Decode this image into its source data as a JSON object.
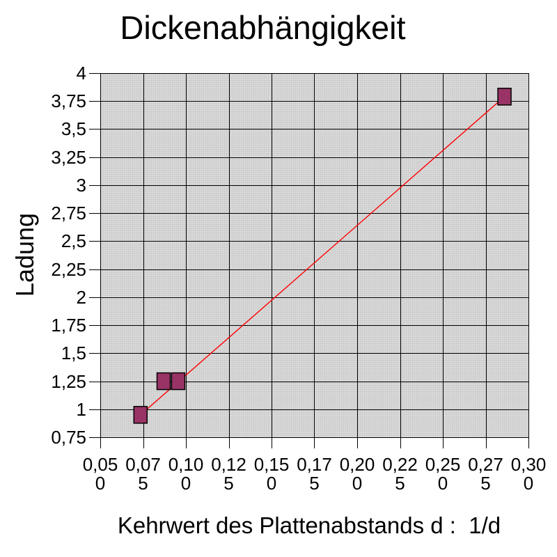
{
  "chart_data": {
    "type": "scatter",
    "title": "Dickenabhängigkeit",
    "xlabel": "Kehrwert des Plattenabstands d :  1/d",
    "ylabel": "Ladung",
    "xlim": [
      0.05,
      0.3
    ],
    "ylim": [
      0.75,
      4.0
    ],
    "grid": true,
    "legend": "none",
    "x_ticks": [
      {
        "value": 0.05,
        "label": "0,050"
      },
      {
        "value": 0.075,
        "label": "0,075"
      },
      {
        "value": 0.1,
        "label": "0,100"
      },
      {
        "value": 0.125,
        "label": "0,125"
      },
      {
        "value": 0.15,
        "label": "0,150"
      },
      {
        "value": 0.175,
        "label": "0,175"
      },
      {
        "value": 0.2,
        "label": "0,200"
      },
      {
        "value": 0.225,
        "label": "0,225"
      },
      {
        "value": 0.25,
        "label": "0,250"
      },
      {
        "value": 0.275,
        "label": "0,275"
      },
      {
        "value": 0.3,
        "label": "0,300"
      }
    ],
    "y_ticks": [
      {
        "value": 4.0,
        "label": "4"
      },
      {
        "value": 3.75,
        "label": "3,75"
      },
      {
        "value": 3.5,
        "label": "3,5"
      },
      {
        "value": 3.25,
        "label": "3,25"
      },
      {
        "value": 3.0,
        "label": "3"
      },
      {
        "value": 2.75,
        "label": "2,75"
      },
      {
        "value": 2.5,
        "label": "2,5"
      },
      {
        "value": 2.25,
        "label": "2,25"
      },
      {
        "value": 2.0,
        "label": "2"
      },
      {
        "value": 1.75,
        "label": "1,75"
      },
      {
        "value": 1.5,
        "label": "1,5"
      },
      {
        "value": 1.25,
        "label": "1,25"
      },
      {
        "value": 1.0,
        "label": "1"
      },
      {
        "value": 0.75,
        "label": "0,75"
      }
    ],
    "points": [
      {
        "x": 0.0735,
        "y": 0.95
      },
      {
        "x": 0.087,
        "y": 1.25
      },
      {
        "x": 0.0955,
        "y": 1.25
      },
      {
        "x": 0.286,
        "y": 3.79
      }
    ],
    "trendline": {
      "x1": 0.0735,
      "y1": 0.95,
      "x2": 0.286,
      "y2": 3.79
    },
    "colors": {
      "marker_fill": "#993366",
      "marker_border": "#000000",
      "trendline": "#ff0000",
      "gridline": "#000000",
      "plot_background": "#dadada",
      "page_background": "#ffffff",
      "text": "#000000"
    }
  }
}
